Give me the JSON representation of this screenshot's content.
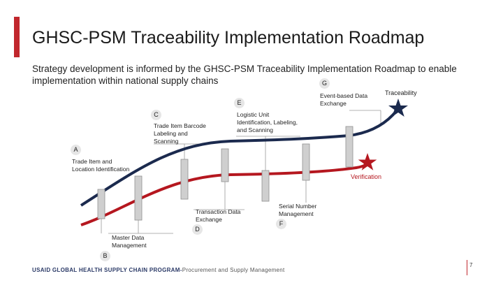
{
  "title": "GHSC-PSM Traceability Implementation Roadmap",
  "subtitle": "Strategy development is informed by the GHSC-PSM Traceability Implementation Roadmap to enable implementation within national supply chains",
  "curves": [
    {
      "name": "Traceability",
      "color": "#1b2a4e"
    },
    {
      "name": "Verification",
      "color": "#b5171f"
    }
  ],
  "milestones": [
    {
      "letter": "A",
      "label_lines": [
        "Trade Item and",
        "Location Identification"
      ]
    },
    {
      "letter": "B",
      "label_lines": [
        "Master Data",
        "Management"
      ]
    },
    {
      "letter": "C",
      "label_lines": [
        "Trade Item Barcode",
        "Labeling and",
        "Scanning"
      ]
    },
    {
      "letter": "D",
      "label_lines": [
        "Transaction Data",
        "Exchange"
      ]
    },
    {
      "letter": "E",
      "label_lines": [
        "Logistic Unit",
        "Identification, Labeling,",
        "and Scanning"
      ]
    },
    {
      "letter": "F",
      "label_lines": [
        "Serial Number",
        "Management"
      ]
    },
    {
      "letter": "G",
      "label_lines": [
        "Event-based Data",
        "Exchange"
      ]
    }
  ],
  "endpoints": {
    "traceability": "Traceability",
    "verification": "Verification"
  },
  "footer": {
    "program": "USAID GLOBAL HEALTH SUPPLY CHAIN PROGRAM-",
    "org": "Procurement and Supply Management"
  },
  "page_number": "7",
  "colors": {
    "accent": "#c1272d",
    "navy": "#1b2a4e",
    "red": "#b5171f",
    "bar_fill": "#cfcfcf"
  }
}
